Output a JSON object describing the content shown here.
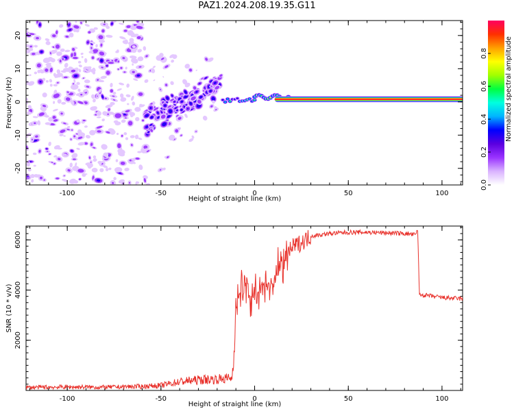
{
  "title": "PAZ1.2024.208.19.35.G11",
  "chart_data": [
    {
      "type": "heatmap",
      "title": "",
      "xlabel": "Height of straight line (km)",
      "ylabel": "Frequency (Hz)",
      "xlim": [
        -122,
        111
      ],
      "ylim": [
        -25,
        24.5
      ],
      "xticks": [
        -100,
        -50,
        0,
        50,
        100
      ],
      "yticks": [
        -20,
        -10,
        0,
        10,
        20
      ],
      "colorbar": {
        "label": "Normalized spectral amplitude",
        "range": [
          0,
          1
        ],
        "ticks": [
          "0.0",
          "0.2",
          "0.4",
          "0.6",
          "0.8"
        ],
        "colors": [
          "#ffffff",
          "#d9b3ff",
          "#9a33ff",
          "#5a00e0",
          "#0000ff",
          "#00b4ff",
          "#00ffe0",
          "#00ff40",
          "#a0ff00",
          "#ffff00",
          "#ffa000",
          "#ff3000",
          "#ff0060"
        ]
      },
      "features": [
        {
          "x_range": [
            -122,
            -58
          ],
          "freq_range": [
            -24,
            24
          ],
          "amplitude": 0.2,
          "description_level": "scattered"
        },
        {
          "x_range": [
            -58,
            -18
          ],
          "freq_center_start": -6,
          "freq_center_end": 6,
          "amplitude": 0.3
        },
        {
          "x_range": [
            -16,
            0
          ],
          "freq_center": 0.5,
          "amplitude": 0.6
        },
        {
          "x_range": [
            0,
            18
          ],
          "freq_center": 1.5,
          "amplitude": 0.75
        },
        {
          "x_range": [
            18,
            111
          ],
          "freq_center": 0.8,
          "amplitude": 0.95
        }
      ]
    },
    {
      "type": "line",
      "title": "",
      "xlabel": "Height of straight line (km)",
      "ylabel": "SNR (10 * v/v)",
      "xlim": [
        -122,
        111
      ],
      "ylim": [
        0,
        6550
      ],
      "xticks": [
        -100,
        -50,
        0,
        50,
        100
      ],
      "yticks": [
        2000,
        4000,
        6000
      ],
      "color": "#e8302a",
      "series": [
        {
          "x": [
            -122,
            -100,
            -80,
            -60,
            -50,
            -40,
            -30,
            -20,
            -15,
            -12,
            -11,
            -10,
            -8,
            -5,
            -2,
            0,
            5,
            10,
            15,
            20,
            25,
            30,
            40,
            50,
            60,
            70,
            80,
            86,
            87,
            88,
            90,
            100,
            111
          ],
          "values": [
            120,
            140,
            130,
            160,
            200,
            350,
            420,
            450,
            480,
            500,
            1500,
            3200,
            3800,
            4200,
            3500,
            4000,
            4200,
            4300,
            5100,
            5700,
            5900,
            6150,
            6250,
            6300,
            6300,
            6280,
            6250,
            6200,
            6400,
            3800,
            3800,
            3700,
            3650
          ]
        }
      ]
    }
  ]
}
